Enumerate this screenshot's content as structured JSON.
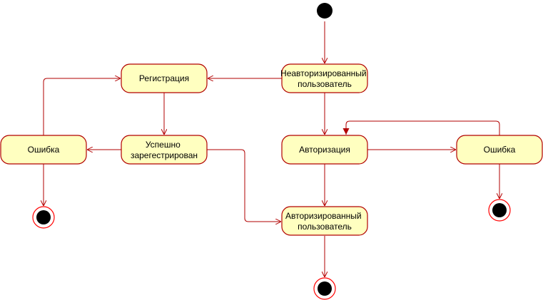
{
  "diagram": {
    "colors": {
      "node_fill": "#FFFFC0",
      "node_border": "#B20000",
      "edge": "#B20000",
      "final_ring": "#FF0000",
      "start": "#000000"
    },
    "states": {
      "unauthorized": [
        "Неавторизированный",
        "пользователь"
      ],
      "registration": [
        "Регистрация"
      ],
      "registered": [
        "Успешно",
        "зарегестрирован"
      ],
      "reg_error": [
        "Ошибка"
      ],
      "authorization": [
        "Авторизация"
      ],
      "auth_error": [
        "Ошибка"
      ],
      "authorized": [
        "Авторизированный",
        "пользователь"
      ]
    },
    "transitions": [
      {
        "from": "initial",
        "to": "unauthorized"
      },
      {
        "from": "unauthorized",
        "to": "registration"
      },
      {
        "from": "unauthorized",
        "to": "authorization"
      },
      {
        "from": "registration",
        "to": "registered"
      },
      {
        "from": "registered",
        "to": "reg_error"
      },
      {
        "from": "reg_error",
        "to": "registration"
      },
      {
        "from": "reg_error",
        "to": "final"
      },
      {
        "from": "registered",
        "to": "authorized"
      },
      {
        "from": "authorization",
        "to": "auth_error"
      },
      {
        "from": "auth_error",
        "to": "authorization"
      },
      {
        "from": "auth_error",
        "to": "final"
      },
      {
        "from": "authorization",
        "to": "authorized"
      },
      {
        "from": "authorized",
        "to": "final"
      }
    ]
  }
}
